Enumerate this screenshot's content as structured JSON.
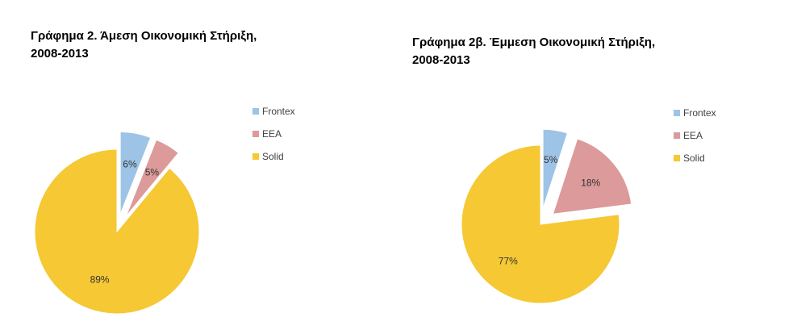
{
  "chart_data": [
    {
      "type": "pie",
      "title_line1": "Γράφημα 2. Άμεση Οικονομική Στήριξη,",
      "title_line2": "2008-2013",
      "labels": [
        "Frontex",
        "EEA",
        "Solid"
      ],
      "values": [
        6,
        5,
        89
      ],
      "value_labels": [
        "6%",
        "5%",
        "89%"
      ],
      "colors": [
        "#9dc3e6",
        "#dc9a9a",
        "#f5c834"
      ],
      "exploded": true,
      "legend_position": "right"
    },
    {
      "type": "pie",
      "title_line1": "Γράφημα 2β. Έμμεση Οικονομική Στήριξη,",
      "title_line2": "2008-2013",
      "labels": [
        "Frontex",
        "EEA",
        "Solid"
      ],
      "values": [
        5,
        18,
        77
      ],
      "value_labels": [
        "5%",
        "18%",
        "77%"
      ],
      "colors": [
        "#9dc3e6",
        "#dc9a9a",
        "#f5c834"
      ],
      "exploded": true,
      "legend_position": "right"
    }
  ]
}
